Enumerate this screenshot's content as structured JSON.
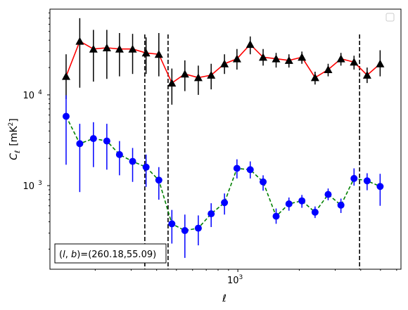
{
  "chart_data": {
    "type": "scatter",
    "title": "",
    "xlabel": "ℓ",
    "ylabel_main": "C",
    "ylabel_sub": "ℓ",
    "ylabel_unit_pre": "[mK",
    "ylabel_unit_sup": "2",
    "ylabel_unit_post": "]",
    "xscale": "log",
    "yscale": "log",
    "xlim": [
      120,
      6300
    ],
    "ylim": [
      120,
      88000
    ],
    "xticks": [
      {
        "value": 1000,
        "base": "10",
        "exp": "3"
      }
    ],
    "yticks": [
      {
        "value": 1000,
        "base": "10",
        "exp": "3"
      },
      {
        "value": 10000,
        "base": "10",
        "exp": "4"
      }
    ],
    "vlines": [
      350,
      455,
      3950
    ],
    "annotation": "(l, b)=(260.18,55.09)",
    "annotation_parts": {
      "pre": "(",
      "l": "l",
      "sep": ", ",
      "b": "b",
      "post": ")=(260.18,55.09)"
    },
    "legend": "top-right (empty)",
    "series": [
      {
        "style": "solid",
        "line_color": "#ff0000",
        "marker": "triangle",
        "marker_color": "#000000",
        "points": [
          {
            "x": 144,
            "y": 16000,
            "lo": 9000,
            "hi": 28000
          },
          {
            "x": 168,
            "y": 39000,
            "lo": 12000,
            "hi": 70000
          },
          {
            "x": 196,
            "y": 32000,
            "lo": 14000,
            "hi": 52000
          },
          {
            "x": 228,
            "y": 33000,
            "lo": 15000,
            "hi": 52000
          },
          {
            "x": 263,
            "y": 32000,
            "lo": 16000,
            "hi": 48000
          },
          {
            "x": 305,
            "y": 32000,
            "lo": 17000,
            "hi": 47000
          },
          {
            "x": 355,
            "y": 29000,
            "lo": 17000,
            "hi": 43000
          },
          {
            "x": 410,
            "y": 28000,
            "lo": 16000,
            "hi": 48000
          },
          {
            "x": 475,
            "y": 13500,
            "lo": 7800,
            "hi": 19500
          },
          {
            "x": 550,
            "y": 17000,
            "lo": 11000,
            "hi": 24000
          },
          {
            "x": 640,
            "y": 15500,
            "lo": 10000,
            "hi": 21000
          },
          {
            "x": 740,
            "y": 16500,
            "lo": 11500,
            "hi": 22000
          },
          {
            "x": 860,
            "y": 22000,
            "lo": 17000,
            "hi": 28000
          },
          {
            "x": 990,
            "y": 25000,
            "lo": 19000,
            "hi": 32000
          },
          {
            "x": 1150,
            "y": 36000,
            "lo": 28000,
            "hi": 44000
          },
          {
            "x": 1330,
            "y": 26000,
            "lo": 21000,
            "hi": 32000
          },
          {
            "x": 1540,
            "y": 25000,
            "lo": 20000,
            "hi": 29000
          },
          {
            "x": 1780,
            "y": 24000,
            "lo": 20000,
            "hi": 28000
          },
          {
            "x": 2060,
            "y": 26000,
            "lo": 22000,
            "hi": 30000
          },
          {
            "x": 2390,
            "y": 15500,
            "lo": 13000,
            "hi": 18000
          },
          {
            "x": 2770,
            "y": 19000,
            "lo": 16000,
            "hi": 22000
          },
          {
            "x": 3200,
            "y": 25000,
            "lo": 21000,
            "hi": 29000
          },
          {
            "x": 3710,
            "y": 23000,
            "lo": 19000,
            "hi": 27000
          },
          {
            "x": 4300,
            "y": 16500,
            "lo": 13500,
            "hi": 20000
          },
          {
            "x": 4980,
            "y": 22000,
            "lo": 16000,
            "hi": 31000
          }
        ]
      },
      {
        "style": "dashed",
        "line_color": "#008000",
        "marker": "circle",
        "marker_color": "#0000ff",
        "points": [
          {
            "x": 144,
            "y": 5800,
            "lo": 1700,
            "hi": 9900
          },
          {
            "x": 168,
            "y": 2900,
            "lo": 850,
            "hi": 4800
          },
          {
            "x": 196,
            "y": 3300,
            "lo": 1600,
            "hi": 5000
          },
          {
            "x": 228,
            "y": 3100,
            "lo": 1500,
            "hi": 4800
          },
          {
            "x": 263,
            "y": 2200,
            "lo": 1300,
            "hi": 3100
          },
          {
            "x": 305,
            "y": 1850,
            "lo": 1100,
            "hi": 2600
          },
          {
            "x": 355,
            "y": 1600,
            "lo": 970,
            "hi": 2200
          },
          {
            "x": 410,
            "y": 1150,
            "lo": 700,
            "hi": 1600
          },
          {
            "x": 475,
            "y": 380,
            "lo": 230,
            "hi": 540
          },
          {
            "x": 550,
            "y": 320,
            "lo": 160,
            "hi": 480
          },
          {
            "x": 640,
            "y": 340,
            "lo": 220,
            "hi": 470
          },
          {
            "x": 740,
            "y": 490,
            "lo": 350,
            "hi": 640
          },
          {
            "x": 860,
            "y": 650,
            "lo": 480,
            "hi": 820
          },
          {
            "x": 990,
            "y": 1550,
            "lo": 1200,
            "hi": 1950
          },
          {
            "x": 1150,
            "y": 1500,
            "lo": 1200,
            "hi": 1850
          },
          {
            "x": 1330,
            "y": 1100,
            "lo": 880,
            "hi": 1300
          },
          {
            "x": 1540,
            "y": 460,
            "lo": 380,
            "hi": 560
          },
          {
            "x": 1780,
            "y": 630,
            "lo": 530,
            "hi": 740
          },
          {
            "x": 2060,
            "y": 680,
            "lo": 570,
            "hi": 790
          },
          {
            "x": 2390,
            "y": 510,
            "lo": 440,
            "hi": 590
          },
          {
            "x": 2770,
            "y": 800,
            "lo": 690,
            "hi": 930
          },
          {
            "x": 3200,
            "y": 610,
            "lo": 500,
            "hi": 720
          },
          {
            "x": 3710,
            "y": 1200,
            "lo": 1000,
            "hi": 1550
          },
          {
            "x": 4300,
            "y": 1130,
            "lo": 890,
            "hi": 1370
          },
          {
            "x": 4980,
            "y": 980,
            "lo": 600,
            "hi": 1350
          }
        ]
      }
    ]
  }
}
